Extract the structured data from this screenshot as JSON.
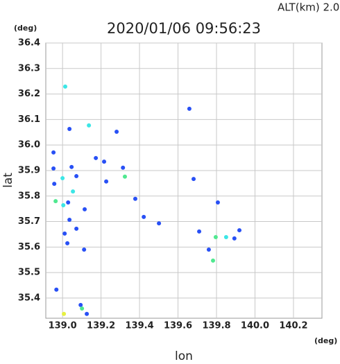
{
  "chart_data": {
    "type": "scatter",
    "title": "2020/01/06 09:56:23",
    "subtitle": "ALT(km) 2.0",
    "y_unit": "(deg)",
    "x_unit": "(deg)",
    "xlabel": "lon",
    "ylabel": "lat",
    "xlim": [
      138.913,
      140.348
    ],
    "ylim": [
      35.321,
      36.4
    ],
    "xticks": [
      {
        "value": 139.0,
        "label": "139.0"
      },
      139.2,
      139.4,
      139.6,
      139.8,
      {
        "value": 140.0,
        "label": "140.0"
      },
      140.2
    ],
    "yticks": [
      35.4,
      35.5,
      35.6,
      35.7,
      35.8,
      35.9,
      {
        "value": 36.0,
        "label": "36.0"
      },
      36.1,
      36.2,
      36.3,
      36.4
    ],
    "grid": true,
    "series": [
      {
        "color": "#2850f5",
        "x": [
          139.036,
          139.659,
          139.281,
          138.953,
          138.953,
          139.047,
          139.072,
          139.173,
          139.216,
          139.314,
          139.227,
          139.681,
          139.029,
          139.115,
          139.036,
          139.072,
          139.011,
          139.025,
          139.112,
          139.378,
          139.422,
          139.501,
          139.807,
          139.71,
          139.893,
          139.76,
          139.919,
          138.968,
          139.094,
          139.126,
          138.957
        ],
        "y": [
          36.063,
          36.142,
          36.052,
          35.971,
          35.908,
          35.914,
          35.878,
          35.949,
          35.935,
          35.911,
          35.857,
          35.867,
          35.775,
          35.748,
          35.707,
          35.672,
          35.653,
          35.615,
          35.59,
          35.789,
          35.718,
          35.693,
          35.775,
          35.661,
          35.634,
          35.59,
          35.666,
          35.433,
          35.373,
          35.338,
          35.848
        ]
      },
      {
        "color": "#3ce6e6",
        "x": [
          139.014,
          139.137,
          139.0,
          139.004,
          139.85,
          139.054
        ],
        "y": [
          36.229,
          36.077,
          35.87,
          35.764,
          35.639,
          35.818
        ]
      },
      {
        "color": "#50e890",
        "x": [
          138.964,
          139.796,
          139.782,
          139.101,
          139.324
        ],
        "y": [
          35.78,
          35.639,
          35.547,
          35.359,
          35.876
        ]
      },
      {
        "color": "#e6f040",
        "x": [
          139.007
        ],
        "y": [
          35.338
        ]
      }
    ]
  }
}
